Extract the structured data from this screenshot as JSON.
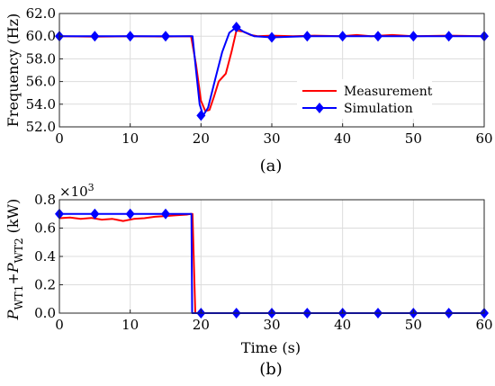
{
  "chart_data": [
    {
      "type": "line",
      "panel_label": "(a)",
      "xlabel": "",
      "ylabel": "Frequency (Hz)",
      "xlim": [
        0,
        60
      ],
      "ylim": [
        52,
        62
      ],
      "x_ticks": [
        "0",
        "10",
        "20",
        "30",
        "40",
        "50",
        "60"
      ],
      "y_ticks": [
        "52.0",
        "54.0",
        "56.0",
        "58.0",
        "60.0",
        "62.0"
      ],
      "grid": true,
      "legend_position": "lower-right",
      "series": [
        {
          "name": "Measurement",
          "color": "#ff0000",
          "marker": "none",
          "x": [
            0,
            5,
            10,
            15,
            18.6,
            19.3,
            20,
            20.6,
            21.2,
            21.8,
            22.5,
            23.5,
            24.3,
            25,
            26,
            27,
            28,
            30,
            33,
            36,
            40,
            42,
            44,
            47,
            50,
            55,
            60
          ],
          "y": [
            60.0,
            59.95,
            60.0,
            59.97,
            60.0,
            57.5,
            54.3,
            53.4,
            53.5,
            54.6,
            56.0,
            56.7,
            58.6,
            60.5,
            60.4,
            60.1,
            60.0,
            60.05,
            60.0,
            60.05,
            60.0,
            60.1,
            60.0,
            60.1,
            60.0,
            60.05,
            60.0
          ]
        },
        {
          "name": "Simulation",
          "color": "#0000ff",
          "marker": "diamond",
          "x": [
            0,
            5,
            10,
            15,
            18.8,
            19.3,
            19.8,
            20.3,
            21,
            22,
            23,
            24,
            25,
            26,
            27.5,
            30,
            35,
            40,
            45,
            50,
            55,
            60
          ],
          "y": [
            60.0,
            60.0,
            60.0,
            60.0,
            60.0,
            57.0,
            54.0,
            53.0,
            53.7,
            56.2,
            58.6,
            60.3,
            60.8,
            60.4,
            60.0,
            59.9,
            60.0,
            60.0,
            60.0,
            60.0,
            60.0,
            60.0
          ],
          "marker_x": [
            0,
            5,
            10,
            15,
            20,
            25,
            30,
            35,
            40,
            45,
            50,
            55,
            60
          ],
          "marker_y": [
            60.0,
            60.0,
            60.0,
            60.0,
            53.0,
            60.8,
            59.9,
            60.0,
            60.0,
            60.0,
            60.0,
            60.0,
            60.0
          ]
        }
      ]
    },
    {
      "type": "line",
      "panel_label": "(b)",
      "xlabel": "Time (s)",
      "ylabel_parts": {
        "p1": "P",
        "s1": "WT1",
        "plus": "+",
        "p2": "P",
        "s2": "WT2",
        "unit": " (kW)"
      },
      "axis_multiplier": {
        "base": "×10",
        "exp": "3"
      },
      "xlim": [
        0,
        60
      ],
      "ylim": [
        0,
        0.8
      ],
      "x_ticks": [
        "0",
        "10",
        "20",
        "30",
        "40",
        "50",
        "60"
      ],
      "y_ticks": [
        "0.0",
        "0.2",
        "0.4",
        "0.6",
        "0.8"
      ],
      "grid": true,
      "series": [
        {
          "name": "Measurement",
          "color": "#ff0000",
          "marker": "none",
          "x": [
            0,
            1.5,
            3,
            4.5,
            6,
            7.5,
            9,
            10.5,
            12,
            13.5,
            15,
            16.5,
            18,
            18.5,
            18.8,
            19.2,
            20,
            25,
            30,
            40,
            50,
            60
          ],
          "y": [
            0.67,
            0.675,
            0.665,
            0.672,
            0.66,
            0.665,
            0.65,
            0.665,
            0.67,
            0.68,
            0.685,
            0.69,
            0.695,
            0.7,
            0.7,
            0.0,
            0.0,
            0.0,
            0.0,
            0.0,
            0.0,
            0.0
          ]
        },
        {
          "name": "Simulation",
          "color": "#0000ff",
          "marker": "diamond",
          "x": [
            0,
            5,
            10,
            15,
            18.65,
            18.75,
            20,
            25,
            30,
            35,
            40,
            45,
            50,
            55,
            60
          ],
          "y": [
            0.7,
            0.7,
            0.7,
            0.7,
            0.7,
            0.0,
            0.0,
            0.0,
            0.0,
            0.0,
            0.0,
            0.0,
            0.0,
            0.0,
            0.0
          ],
          "marker_x": [
            0,
            5,
            10,
            15,
            20,
            25,
            30,
            35,
            40,
            45,
            50,
            55,
            60
          ],
          "marker_y": [
            0.7,
            0.7,
            0.7,
            0.7,
            0.0,
            0.0,
            0.0,
            0.0,
            0.0,
            0.0,
            0.0,
            0.0,
            0.0
          ]
        }
      ]
    }
  ]
}
